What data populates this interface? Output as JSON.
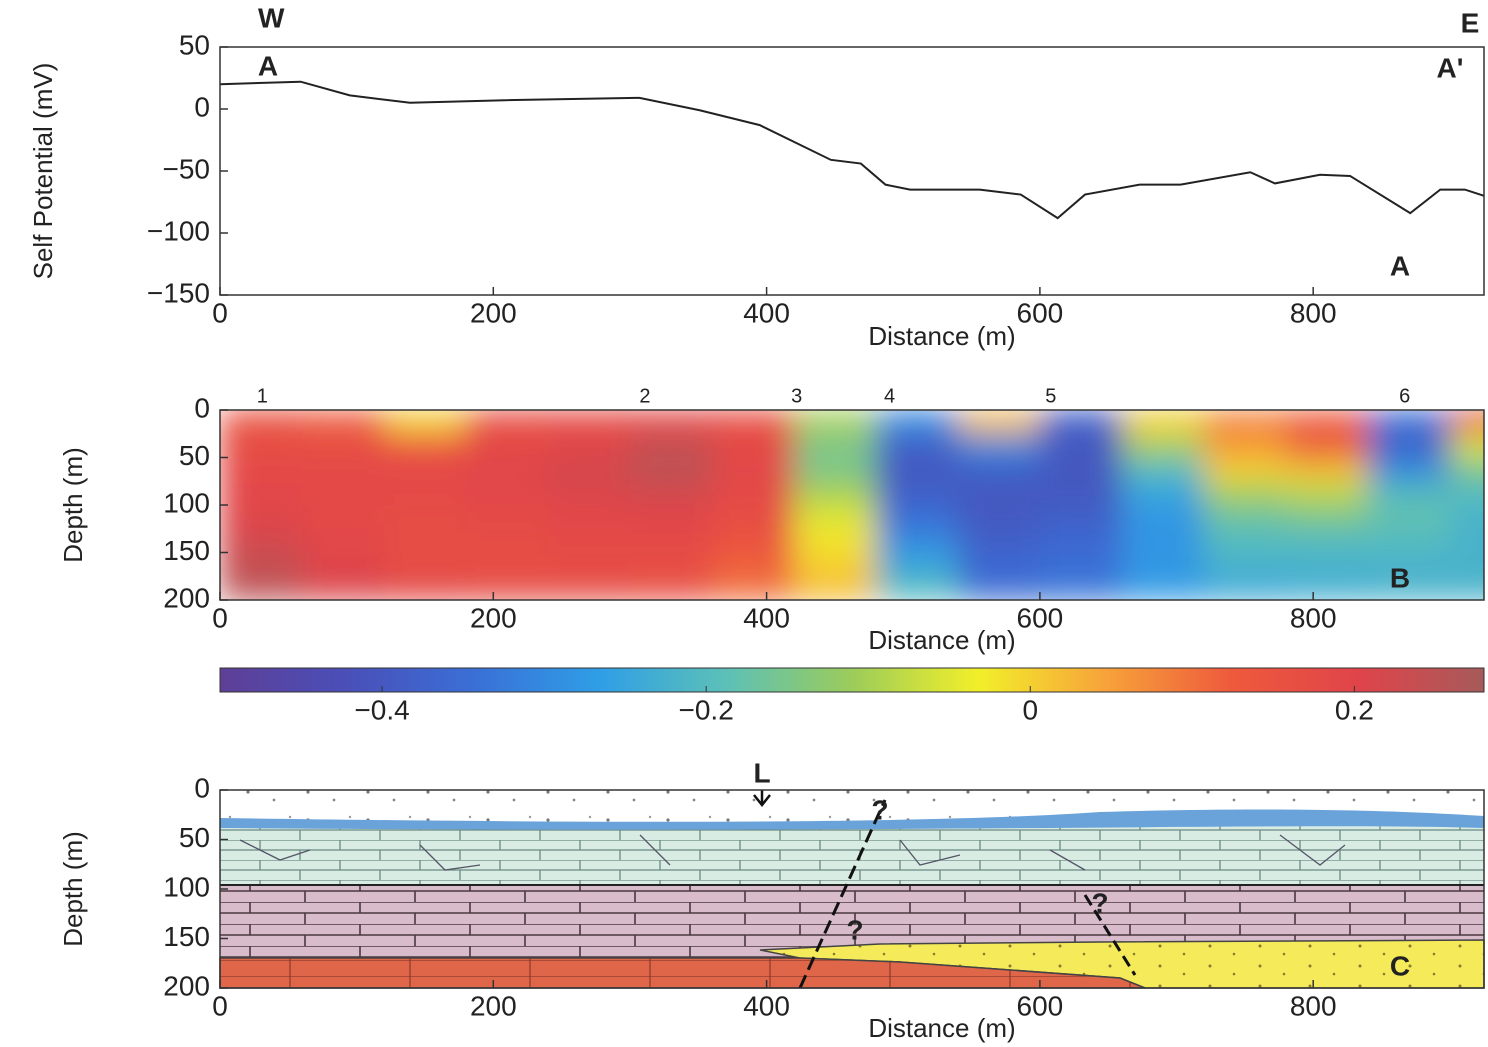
{
  "chart_data": [
    {
      "type": "line",
      "x_label": "Distance (m)",
      "y_label": "Self Potential (mV)",
      "annotations": [
        "W",
        "E",
        "A",
        "A'",
        "A"
      ],
      "x": [
        0,
        59,
        95,
        139,
        205,
        307,
        351,
        395,
        447,
        469,
        487,
        505,
        556,
        586,
        613,
        633,
        673,
        703,
        754,
        772,
        805,
        827,
        871,
        893,
        911,
        925
      ],
      "values": [
        20,
        22,
        11,
        5,
        7,
        9,
        -1,
        -13,
        -41,
        -44,
        -61,
        -65,
        -65,
        -69,
        -88,
        -69,
        -61,
        -61,
        -51,
        -60,
        -53,
        -54,
        -84,
        -65,
        -65,
        -70
      ],
      "color": "#222",
      "xlim": [
        0,
        925
      ],
      "ylim": [
        -150,
        50
      ],
      "xticks": [
        0,
        200,
        400,
        600,
        800
      ],
      "yticks": [
        50,
        0,
        {
          "value": -50,
          "label": "−50"
        },
        {
          "value": -100,
          "label": "−100"
        },
        {
          "value": -150,
          "label": "−150"
        }
      ]
    },
    {
      "type": "heatmap",
      "x_label": "Distance (m)",
      "y_label": "Depth (m)",
      "annotations": [
        "B"
      ],
      "electrodes": {
        "labels": [
          "1",
          "2",
          "3",
          "4",
          "5",
          "6"
        ],
        "x": [
          31,
          311,
          422,
          490,
          608,
          867
        ]
      },
      "x": [
        30,
        90,
        150,
        210,
        270,
        330,
        390,
        450,
        510,
        570,
        630,
        690,
        750,
        810,
        870,
        930
      ],
      "y": [
        12.5,
        37.5,
        62.5,
        87.5,
        112.5,
        137.5,
        162.5,
        187.5
      ],
      "z": [
        [
          0.15,
          0.12,
          0.0,
          0.16,
          0.17,
          0.18,
          0.16,
          -0.1,
          -0.3,
          0.02,
          -0.38,
          0.0,
          0.08,
          0.12,
          -0.35,
          0.15
        ],
        [
          0.17,
          0.17,
          0.14,
          0.18,
          0.2,
          0.24,
          0.18,
          -0.15,
          -0.38,
          -0.3,
          -0.4,
          -0.1,
          0.06,
          0.15,
          -0.38,
          -0.05
        ],
        [
          0.18,
          0.18,
          0.18,
          0.2,
          0.22,
          0.25,
          0.19,
          -0.15,
          -0.4,
          -0.38,
          -0.4,
          -0.2,
          0.0,
          0.02,
          -0.3,
          -0.15
        ],
        [
          0.19,
          0.18,
          0.18,
          0.19,
          0.21,
          0.22,
          0.18,
          -0.1,
          -0.38,
          -0.4,
          -0.4,
          -0.25,
          -0.1,
          -0.08,
          -0.2,
          -0.2
        ],
        [
          0.2,
          0.18,
          0.17,
          0.18,
          0.19,
          0.2,
          0.17,
          -0.05,
          -0.35,
          -0.4,
          -0.38,
          -0.28,
          -0.17,
          -0.15,
          -0.18,
          -0.22
        ],
        [
          0.22,
          0.19,
          0.17,
          0.17,
          0.18,
          0.18,
          0.15,
          -0.02,
          -0.3,
          -0.38,
          -0.36,
          -0.28,
          -0.2,
          -0.2,
          -0.2,
          -0.22
        ],
        [
          0.24,
          0.2,
          0.17,
          0.17,
          0.17,
          0.17,
          0.12,
          0.0,
          -0.25,
          -0.36,
          -0.35,
          -0.28,
          -0.22,
          -0.22,
          -0.22,
          -0.22
        ],
        [
          0.25,
          0.21,
          0.18,
          0.17,
          0.17,
          0.16,
          0.1,
          0.02,
          -0.2,
          -0.35,
          -0.33,
          -0.27,
          -0.24,
          -0.23,
          -0.22,
          -0.22
        ]
      ],
      "xlim": [
        0,
        925
      ],
      "ylim": [
        0,
        200
      ],
      "y_inverted": true,
      "xticks": [
        0,
        200,
        400,
        600,
        800
      ],
      "yticks": [
        0,
        50,
        100,
        150,
        200
      ],
      "colorbar": {
        "clim": [
          -0.5,
          0.28
        ],
        "colors": [
          "#5e3f96",
          "#4a4fb8",
          "#3a6fd6",
          "#2f9ee6",
          "#5cc0b8",
          "#9ccc5a",
          "#f2ef2a",
          "#f7a33a",
          "#ee5a3c",
          "#e0444a",
          "#a65a5a"
        ],
        "ticks": [
          {
            "value": -0.4,
            "label": "−0.4"
          },
          {
            "value": -0.2,
            "label": "−0.2"
          },
          0,
          0.2
        ]
      }
    },
    {
      "type": "section",
      "x_label": "Distance (m)",
      "y_label": "Depth (m)",
      "annotations": [
        "L",
        "?",
        "?",
        "?",
        "C"
      ],
      "xlim": [
        0,
        925
      ],
      "ylim": [
        0,
        200
      ],
      "y_inverted": true,
      "xticks": [
        0,
        200,
        400,
        600,
        800
      ],
      "yticks": [
        0,
        50,
        100,
        150,
        200
      ]
    }
  ]
}
